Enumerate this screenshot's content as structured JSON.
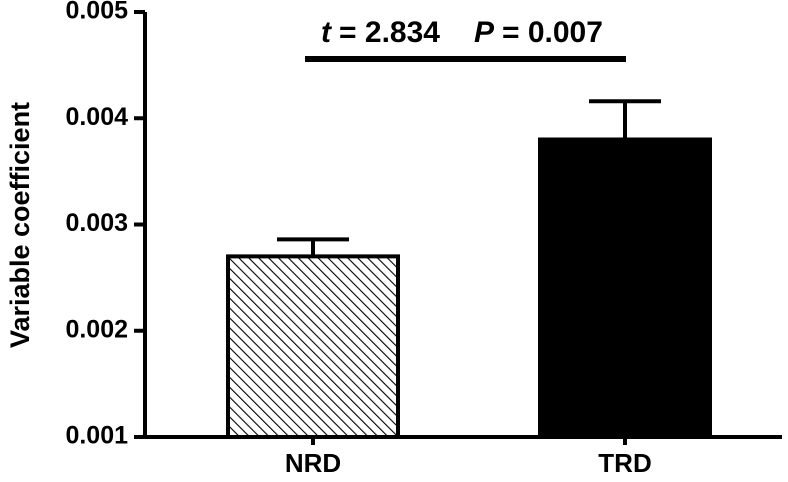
{
  "chart_data": {
    "type": "bar",
    "title": "",
    "xlabel": "",
    "ylabel": "Variable coefficient",
    "ylim": [
      0.001,
      0.005
    ],
    "yticks": [
      "0.001",
      "0.002",
      "0.003",
      "0.004",
      "0.005"
    ],
    "categories": [
      "NRD",
      "TRD"
    ],
    "values": [
      0.0027,
      0.0038
    ],
    "error_upper": [
      0.00286,
      0.00416
    ],
    "bar_fills": [
      "hatched",
      "solid"
    ],
    "colors": {
      "bar_solid": "#000000",
      "hatch_line": "#000000",
      "hatch_bg": "#ffffff"
    },
    "grid": false,
    "annotation": {
      "t_symbol": "t",
      "t_value": "= 2.834",
      "p_symbol": "P",
      "p_value": "= 0.007"
    }
  }
}
